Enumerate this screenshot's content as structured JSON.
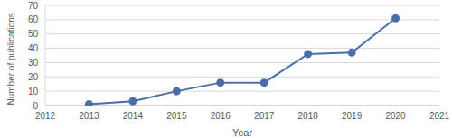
{
  "chart_data": {
    "type": "line",
    "x_label": "Year",
    "y_label": "Number of publications",
    "x": [
      2013,
      2014,
      2015,
      2016,
      2017,
      2018,
      2019,
      2020
    ],
    "values": [
      1,
      3,
      10,
      16,
      16,
      36,
      37,
      61
    ],
    "color": "#4a6ea9",
    "marker": "circle",
    "xlim": [
      2012,
      2021
    ],
    "xticks": [
      2012,
      2013,
      2014,
      2015,
      2016,
      2017,
      2018,
      2019,
      2020,
      2021
    ],
    "ylim": [
      0,
      70
    ],
    "yticks": [
      0,
      10,
      20,
      30,
      40,
      50,
      60,
      70
    ],
    "grid": true
  }
}
